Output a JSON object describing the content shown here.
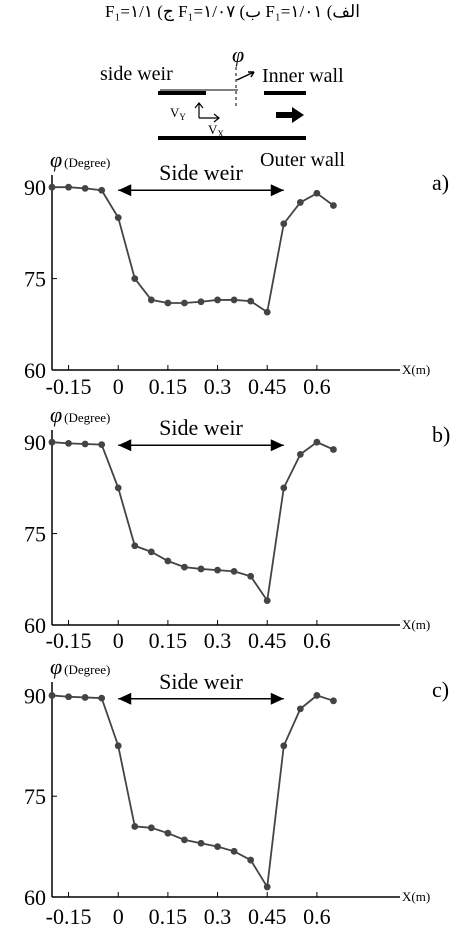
{
  "caption": "الف) F₁=۱/۰۱ ب) F₁=۱/۰۷ ج) F₁=۱/۱",
  "schematic": {
    "side_weir": "side weir",
    "inner_wall": "Inner wall",
    "outer_wall": "Outer wall",
    "phi": "φ",
    "vy": "V",
    "vy_sub": "Y",
    "vx": "V",
    "vx_sub": "X"
  },
  "chart_data": [
    {
      "type": "line",
      "panel_label": "a)",
      "ylabel": "φ",
      "ylabel_unit": "(Degree)",
      "xlabel": "X(m)",
      "annotation": "Side weir",
      "annotation_range": [
        0,
        0.5
      ],
      "xlim": [
        -0.2,
        0.7
      ],
      "ylim": [
        60,
        92
      ],
      "xticks": [
        "-0.15",
        "0",
        "0.15",
        "0.3",
        "0.45",
        "0.6"
      ],
      "xtick_values": [
        -0.15,
        0,
        0.15,
        0.3,
        0.45,
        0.6
      ],
      "yticks": [
        "60",
        "75",
        "90"
      ],
      "ytick_values": [
        60,
        75,
        90
      ],
      "x": [
        -0.2,
        -0.15,
        -0.1,
        -0.05,
        0,
        0.05,
        0.1,
        0.15,
        0.2,
        0.25,
        0.3,
        0.35,
        0.4,
        0.45,
        0.5,
        0.55,
        0.6,
        0.65
      ],
      "y": [
        90,
        90,
        89.8,
        89.5,
        85,
        75,
        71.5,
        71,
        71,
        71.2,
        71.5,
        71.5,
        71.3,
        69.5,
        84,
        87.5,
        89,
        87
      ]
    },
    {
      "type": "line",
      "panel_label": "b)",
      "ylabel": "φ",
      "ylabel_unit": "(Degree)",
      "xlabel": "X(m)",
      "annotation": "Side weir",
      "annotation_range": [
        0,
        0.5
      ],
      "xlim": [
        -0.2,
        0.7
      ],
      "ylim": [
        60,
        92
      ],
      "xticks": [
        "-0.15",
        "0",
        "0.15",
        "0.3",
        "0.45",
        "0.6"
      ],
      "xtick_values": [
        -0.15,
        0,
        0.15,
        0.3,
        0.45,
        0.6
      ],
      "yticks": [
        "60",
        "75",
        "90"
      ],
      "ytick_values": [
        60,
        75,
        90
      ],
      "x": [
        -0.2,
        -0.15,
        -0.1,
        -0.05,
        0,
        0.05,
        0.1,
        0.15,
        0.2,
        0.25,
        0.3,
        0.35,
        0.4,
        0.45,
        0.5,
        0.55,
        0.6,
        0.65
      ],
      "y": [
        90,
        89.8,
        89.7,
        89.6,
        82.5,
        73,
        72,
        70.5,
        69.5,
        69.2,
        69,
        68.8,
        68,
        64,
        82.5,
        88,
        90,
        88.8
      ]
    },
    {
      "type": "line",
      "panel_label": "c)",
      "ylabel": "φ",
      "ylabel_unit": "(Degree)",
      "xlabel": "X(m)",
      "annotation": "Side weir",
      "annotation_range": [
        0,
        0.5
      ],
      "xlim": [
        -0.2,
        0.7
      ],
      "ylim": [
        60,
        92
      ],
      "xticks": [
        "-0.15",
        "0",
        "0.15",
        "0.3",
        "0.45",
        "0.6"
      ],
      "xtick_values": [
        -0.15,
        0,
        0.15,
        0.3,
        0.45,
        0.6
      ],
      "yticks": [
        "60",
        "75",
        "90"
      ],
      "ytick_values": [
        60,
        75,
        90
      ],
      "x": [
        -0.2,
        -0.15,
        -0.1,
        -0.05,
        0,
        0.05,
        0.1,
        0.15,
        0.2,
        0.25,
        0.3,
        0.35,
        0.4,
        0.45,
        0.5,
        0.55,
        0.6,
        0.65
      ],
      "y": [
        90,
        89.8,
        89.7,
        89.6,
        82.5,
        70.5,
        70.3,
        69.5,
        68.5,
        68,
        67.5,
        66.8,
        65.5,
        61.5,
        82.5,
        88,
        90,
        89.2
      ]
    }
  ]
}
